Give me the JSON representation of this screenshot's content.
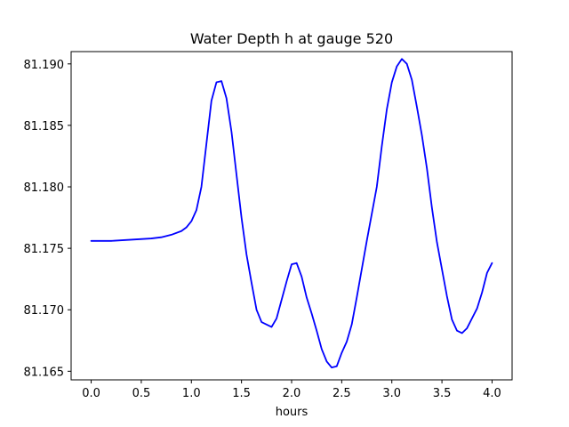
{
  "chart_data": {
    "type": "line",
    "title": "Water Depth h at gauge 520",
    "xlabel": "hours",
    "ylabel": "",
    "xlim": [
      -0.2,
      4.2
    ],
    "ylim": [
      81.1643,
      81.191
    ],
    "xticks": [
      0.0,
      0.5,
      1.0,
      1.5,
      2.0,
      2.5,
      3.0,
      3.5,
      4.0
    ],
    "xtick_labels": [
      "0.0",
      "0.5",
      "1.0",
      "1.5",
      "2.0",
      "2.5",
      "3.0",
      "3.5",
      "4.0"
    ],
    "yticks": [
      81.165,
      81.17,
      81.175,
      81.18,
      81.185,
      81.19
    ],
    "ytick_labels": [
      "81.165",
      "81.170",
      "81.175",
      "81.180",
      "81.185",
      "81.190"
    ],
    "grid": false,
    "series": [
      {
        "color": "#0000ff",
        "x": [
          0.0,
          0.05,
          0.2,
          0.4,
          0.6,
          0.7,
          0.8,
          0.9,
          0.95,
          1.0,
          1.05,
          1.1,
          1.15,
          1.2,
          1.25,
          1.3,
          1.35,
          1.4,
          1.45,
          1.5,
          1.55,
          1.6,
          1.65,
          1.7,
          1.75,
          1.8,
          1.85,
          1.9,
          1.95,
          2.0,
          2.05,
          2.1,
          2.15,
          2.2,
          2.25,
          2.3,
          2.35,
          2.4,
          2.45,
          2.5,
          2.55,
          2.6,
          2.65,
          2.7,
          2.75,
          2.8,
          2.85,
          2.9,
          2.95,
          3.0,
          3.05,
          3.1,
          3.15,
          3.2,
          3.25,
          3.3,
          3.35,
          3.4,
          3.45,
          3.5,
          3.55,
          3.6,
          3.65,
          3.7,
          3.75,
          3.8,
          3.85,
          3.9,
          3.95,
          4.0
        ],
        "y": [
          81.1756,
          81.1756,
          81.1756,
          81.1757,
          81.1758,
          81.1759,
          81.1761,
          81.1764,
          81.1767,
          81.1772,
          81.1781,
          81.18,
          81.1835,
          81.187,
          81.1885,
          81.1886,
          81.1872,
          81.1845,
          81.181,
          81.1775,
          81.1745,
          81.1722,
          81.17,
          81.169,
          81.1688,
          81.1686,
          81.1693,
          81.1708,
          81.1723,
          81.1737,
          81.1738,
          81.1727,
          81.171,
          81.1697,
          81.1683,
          81.1668,
          81.1658,
          81.1653,
          81.1654,
          81.1665,
          81.1674,
          81.1688,
          81.171,
          81.1733,
          81.1756,
          81.1778,
          81.18,
          81.1833,
          81.1863,
          81.1885,
          81.1898,
          81.1904,
          81.19,
          81.1887,
          81.1865,
          81.1842,
          81.1815,
          81.1783,
          81.1755,
          81.1733,
          81.1711,
          81.1692,
          81.1683,
          81.1681,
          81.1685,
          81.1693,
          81.1701,
          81.1714,
          81.173,
          81.1738
        ]
      }
    ]
  }
}
